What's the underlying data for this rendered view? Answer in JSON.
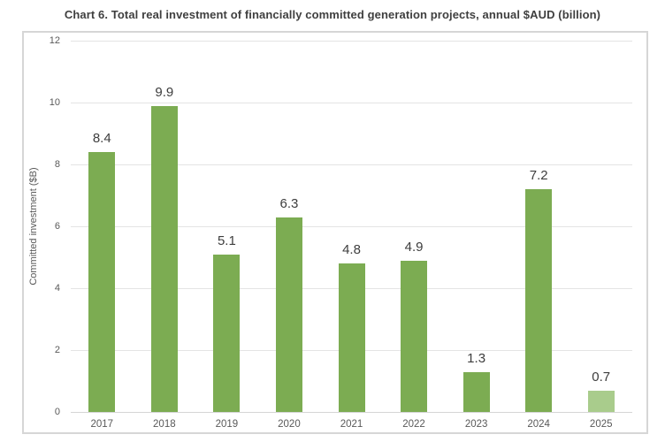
{
  "page": {
    "background_color": "#ffffff"
  },
  "chart_data": {
    "type": "bar",
    "title": "Chart 6. Total real investment of financially committed generation projects, annual $AUD (billion)",
    "xlabel": "",
    "ylabel": "Committed investment ($B)",
    "categories": [
      "2017",
      "2018",
      "2019",
      "2020",
      "2021",
      "2022",
      "2023",
      "2024",
      "2025"
    ],
    "values": [
      8.4,
      9.9,
      5.1,
      6.3,
      4.8,
      4.9,
      1.3,
      7.2,
      0.7
    ],
    "value_labels": [
      "8.4",
      "9.9",
      "5.1",
      "6.3",
      "4.8",
      "4.9",
      "1.3",
      "7.2",
      "0.7"
    ],
    "ylim": [
      0,
      12
    ],
    "yticks": [
      0,
      2,
      4,
      6,
      8,
      10,
      12
    ],
    "grid": "horizontal",
    "legend": "none",
    "bar_colors": [
      "#7cac52",
      "#7cac52",
      "#7cac52",
      "#7cac52",
      "#7cac52",
      "#7cac52",
      "#7cac52",
      "#7cac52",
      "#a9cc8c"
    ],
    "colors": {
      "bar_default": "#7cac52",
      "bar_final_year": "#a9cc8c",
      "gridline": "#e4e4e4",
      "axis_line": "#d5d5d5",
      "border": "#d6d6d6",
      "title_text": "#3f3f3f",
      "tick_text": "#595959",
      "data_label_text": "#3d3d3d"
    }
  }
}
